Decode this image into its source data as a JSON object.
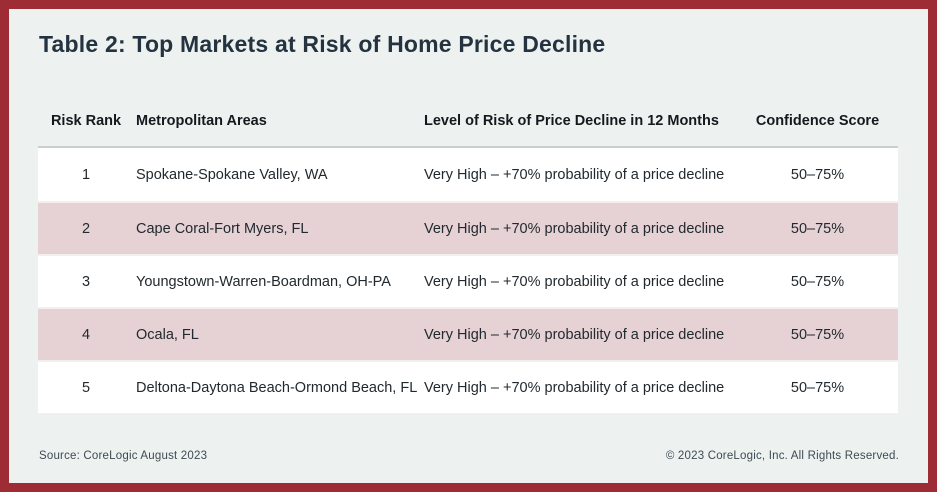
{
  "chart_data": {
    "type": "table",
    "title": "Table 2: Top Markets at Risk of Home Price Decline",
    "columns": [
      "Risk Rank",
      "Metropolitan Areas",
      "Level of Risk of Price Decline in 12 Months",
      "Confidence Score"
    ],
    "rows": [
      {
        "rank": "1",
        "metro": "Spokane-Spokane Valley, WA",
        "risk": "Very High – +70% probability of a price decline",
        "confidence": "50–75%"
      },
      {
        "rank": "2",
        "metro": "Cape Coral-Fort Myers, FL",
        "risk": "Very High – +70% probability of a price decline",
        "confidence": "50–75%"
      },
      {
        "rank": "3",
        "metro": "Youngstown-Warren-Boardman, OH-PA",
        "risk": "Very High – +70% probability of a price decline",
        "confidence": "50–75%"
      },
      {
        "rank": "4",
        "metro": "Ocala, FL",
        "risk": "Very High – +70% probability of a price decline",
        "confidence": "50–75%"
      },
      {
        "rank": "5",
        "metro": "Deltona-Daytona Beach-Ormond Beach, FL",
        "risk": "Very High – +70% probability of a price decline",
        "confidence": "50–75%"
      }
    ],
    "footer": {
      "source": "Source: CoreLogic August 2023",
      "copyright": "© 2023 CoreLogic, Inc. All Rights Reserved."
    },
    "layout": {
      "legend": "none",
      "grid": "off",
      "alternating_row_shading": true
    },
    "colors": {
      "frame_border": "#9E2C34",
      "background": "#EDF2F1",
      "row_white": "#FFFFFF",
      "row_pink": "#E6D2D5",
      "title_text": "#24333F",
      "header_rule": "#C9CDCC",
      "footer_text": "#3E4A52"
    }
  }
}
